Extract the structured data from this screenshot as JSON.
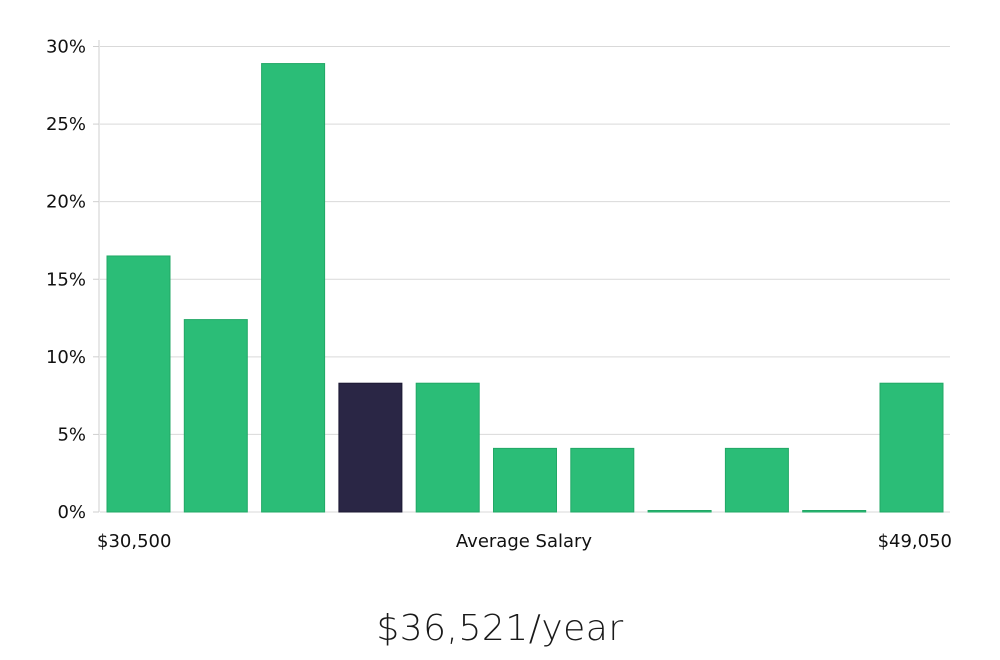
{
  "colors": {
    "bar": "#2bbd77",
    "bar_highlight": "#2a2645",
    "grid": "#d9d9d9"
  },
  "chart_data": {
    "type": "bar",
    "title": "",
    "xlabel": "Average Salary",
    "ylabel": "",
    "x_range_labels": {
      "min": "$30,500",
      "max": "$49,050"
    },
    "yticks": [
      "0%",
      "5%",
      "10%",
      "15%",
      "20%",
      "25%",
      "30%"
    ],
    "ylim": [
      0,
      30
    ],
    "values": [
      16.5,
      12.4,
      28.9,
      8.3,
      8.3,
      4.1,
      4.1,
      0,
      4.1,
      0,
      8.3
    ],
    "highlight_index": 3,
    "grid": true
  },
  "salary_text": "$36,521/year"
}
